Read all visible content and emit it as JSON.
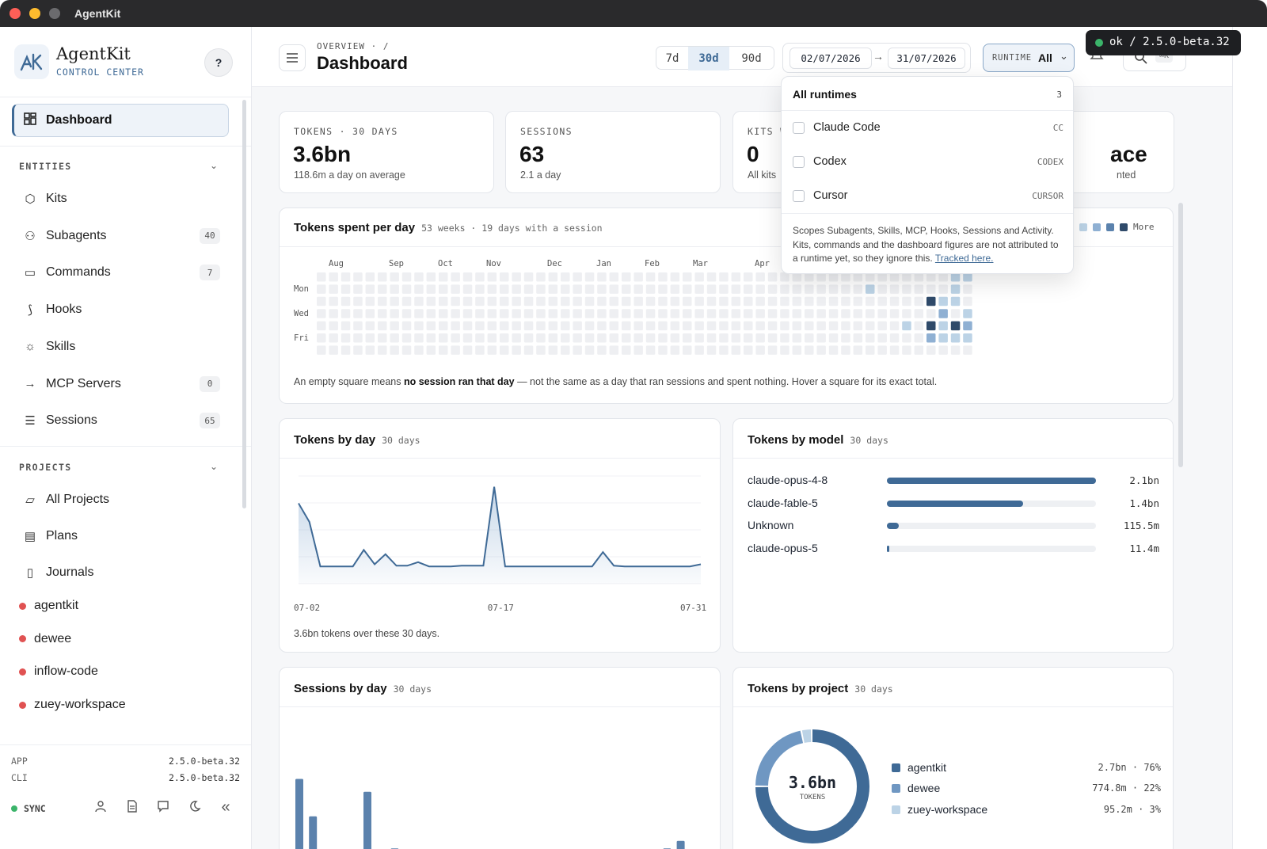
{
  "window": {
    "title": "AgentKit"
  },
  "brand": {
    "name": "AgentKit",
    "subtitle": "CONTROL CENTER",
    "help": "?"
  },
  "sidebar": {
    "active": {
      "label": "Dashboard",
      "icon": "dashboard-icon"
    },
    "entities_heading": "ENTITIES",
    "entities": [
      {
        "label": "Kits",
        "icon": "cube-icon",
        "count": ""
      },
      {
        "label": "Subagents",
        "icon": "subagents-icon",
        "count": "40"
      },
      {
        "label": "Commands",
        "icon": "terminal-icon",
        "count": "7"
      },
      {
        "label": "Hooks",
        "icon": "hook-icon",
        "count": ""
      },
      {
        "label": "Skills",
        "icon": "bulb-icon",
        "count": ""
      },
      {
        "label": "MCP Servers",
        "icon": "arrow-right-icon",
        "count": "0"
      },
      {
        "label": "Sessions",
        "icon": "chat-icon",
        "count": "65"
      }
    ],
    "projects_heading": "PROJECTS",
    "projects_nav": [
      {
        "label": "All Projects",
        "icon": "folder-icon"
      },
      {
        "label": "Plans",
        "icon": "clipboard-icon"
      },
      {
        "label": "Journals",
        "icon": "book-icon"
      }
    ],
    "projects": [
      "agentkit",
      "dewee",
      "inflow-code",
      "zuey-workspace"
    ],
    "footer": {
      "app_label": "APP",
      "app_version": "2.5.0-beta.32",
      "cli_label": "CLI",
      "cli_version": "2.5.0-beta.32",
      "sync": "SYNC"
    }
  },
  "header": {
    "breadcrumb": "OVERVIEW · /",
    "title": "Dashboard",
    "ranges": [
      "7d",
      "30d",
      "90d"
    ],
    "active_range": "30d",
    "date_from": "02/07/2026",
    "date_to": "31/07/2026",
    "runtime_label": "RUNTIME",
    "runtime_value": "All",
    "status": "ok / 2.5.0-beta.32",
    "search_shortcut": "⌘K"
  },
  "stats": [
    {
      "label": "TOKENS · 30 DAYS",
      "value": "3.6bn",
      "sub": "118.6m a day on average"
    },
    {
      "label": "SESSIONS",
      "value": "63",
      "sub": "2.1 a day"
    },
    {
      "label": "KITS W",
      "value": "0",
      "sub": "All kits"
    },
    {
      "label": "",
      "value": "ace",
      "sub": "nted"
    }
  ],
  "heatmap": {
    "title": "Tokens spent per day",
    "meta": "53 weeks · 19 days with a session",
    "more": "More",
    "months": [
      "Aug",
      "Sep",
      "Oct",
      "Nov",
      "Dec",
      "Jan",
      "Feb",
      "Mar",
      "Apr"
    ],
    "days": [
      "Mon",
      "Wed",
      "Fri"
    ],
    "note_pre": "An empty square means ",
    "note_bold": "no session ran that day",
    "note_post": " — not the same as a day that ran sessions and spent nothing. Hover a square for its exact total."
  },
  "dropdown": {
    "header": "All runtimes",
    "count": "3",
    "options": [
      {
        "label": "Claude Code",
        "tag": "CC"
      },
      {
        "label": "Codex",
        "tag": "CODEX"
      },
      {
        "label": "Cursor",
        "tag": "CURSOR"
      }
    ],
    "note": "Scopes Subagents, Skills, MCP, Hooks, Sessions and Activity. Kits, commands and the dashboard figures are not attributed to a runtime yet, so they ignore this.",
    "link": "Tracked here."
  },
  "tokens_by_day": {
    "title": "Tokens by day",
    "meta": "30 days",
    "caption": "3.6bn tokens over these 30 days.",
    "chart_data": {
      "type": "area",
      "x_ticks": [
        "07-02",
        "07-17",
        "07-31"
      ],
      "values": [
        112,
        86,
        24,
        24,
        24,
        24,
        47,
        27,
        41,
        25,
        25,
        30,
        24,
        24,
        24,
        25,
        25,
        25,
        135,
        24,
        24,
        24,
        24,
        24,
        24,
        24,
        24,
        24,
        44,
        25,
        24,
        24,
        24,
        24,
        24,
        24,
        24,
        27
      ],
      "ylim": [
        0,
        150
      ]
    }
  },
  "tokens_by_model": {
    "title": "Tokens by model",
    "meta": "30 days",
    "chart_data": {
      "type": "bar",
      "categories": [
        "claude-opus-4-8",
        "claude-fable-5",
        "Unknown",
        "claude-opus-5"
      ],
      "labels": [
        "2.1bn",
        "1.4bn",
        "115.5m",
        "11.4m"
      ],
      "fractions": [
        1.0,
        0.65,
        0.055,
        0.01
      ]
    }
  },
  "sessions_by_day": {
    "title": "Sessions by day",
    "meta": "30 days",
    "chart_data": {
      "type": "bar",
      "values": [
        7,
        3.5,
        0,
        0,
        0,
        5.8,
        0,
        0.5,
        0,
        0,
        0,
        0,
        0,
        0,
        0,
        0,
        0,
        0,
        0,
        0,
        0,
        0,
        0,
        0,
        0,
        0,
        0,
        0.5,
        1.2,
        0
      ]
    }
  },
  "tokens_by_project": {
    "title": "Tokens by project",
    "meta": "30 days",
    "center_value": "3.6bn",
    "center_label": "TOKENS",
    "chart_data": {
      "type": "pie",
      "categories": [
        "agentkit",
        "dewee",
        "zuey-workspace"
      ],
      "labels": [
        "2.7bn · 76%",
        "774.8m · 22%",
        "95.2m · 3%"
      ],
      "shares": [
        76,
        22,
        3
      ],
      "colors": [
        "#3f6a96",
        "#6f97c2",
        "#bcd3e6"
      ]
    }
  }
}
